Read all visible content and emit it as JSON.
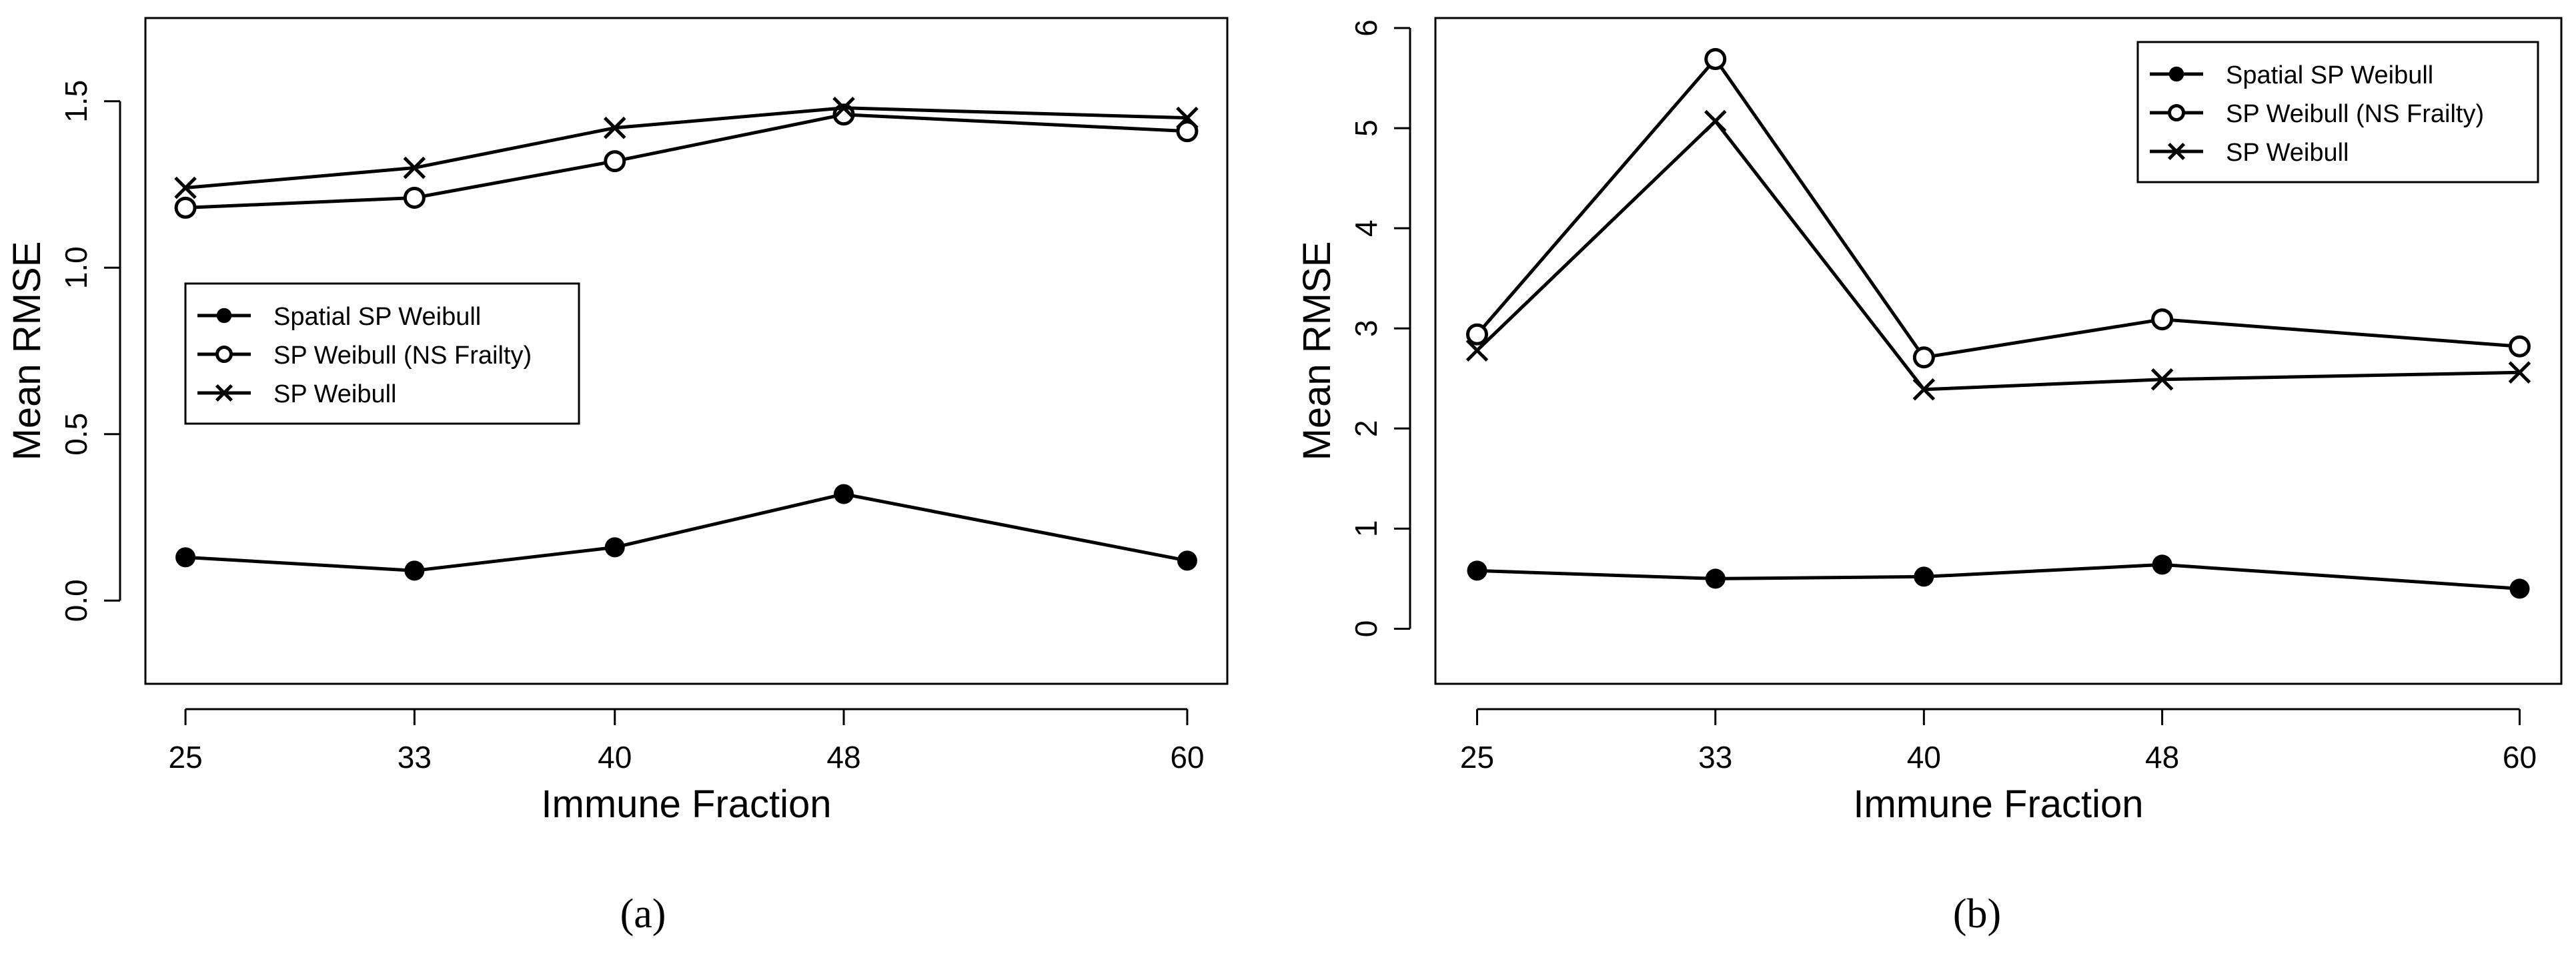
{
  "figure": {
    "caption_a": "(a)",
    "caption_b": "(b)"
  },
  "chart_data": [
    {
      "type": "line",
      "panel_label": "(a)",
      "xlabel": "Immune Fraction",
      "ylabel": "Mean RMSE",
      "categories": [
        "25",
        "33",
        "40",
        "48",
        "60"
      ],
      "x": [
        25,
        33,
        40,
        48,
        60
      ],
      "xlim": [
        23.6,
        61.4
      ],
      "ylim": [
        -0.25,
        1.75
      ],
      "yticks": [
        0.0,
        0.5,
        1.0,
        1.5
      ],
      "ytick_labels": [
        "0.0",
        "0.5",
        "1.0",
        "1.5"
      ],
      "legend_position": "center-left",
      "series": [
        {
          "name": "Spatial SP Weibull",
          "marker": "filled-circle",
          "values": [
            0.13,
            0.09,
            0.16,
            0.32,
            0.12
          ]
        },
        {
          "name": "SP Weibull (NS Frailty)",
          "marker": "open-circle",
          "values": [
            1.18,
            1.21,
            1.32,
            1.46,
            1.41
          ]
        },
        {
          "name": "SP Weibull",
          "marker": "cross",
          "values": [
            1.24,
            1.3,
            1.42,
            1.48,
            1.45
          ]
        }
      ]
    },
    {
      "type": "line",
      "panel_label": "(b)",
      "xlabel": "Immune Fraction",
      "ylabel": "Mean RMSE",
      "categories": [
        "25",
        "33",
        "40",
        "48",
        "60"
      ],
      "x": [
        25,
        33,
        40,
        48,
        60
      ],
      "xlim": [
        23.6,
        61.4
      ],
      "ylim": [
        -0.55,
        6.1
      ],
      "yticks": [
        0,
        1,
        2,
        3,
        4,
        5,
        6
      ],
      "ytick_labels": [
        "0",
        "1",
        "2",
        "3",
        "4",
        "5",
        "6"
      ],
      "legend_position": "top-right",
      "series": [
        {
          "name": "Spatial SP Weibull",
          "marker": "filled-circle",
          "values": [
            0.58,
            0.5,
            0.52,
            0.64,
            0.4
          ]
        },
        {
          "name": "SP Weibull (NS Frailty)",
          "marker": "open-circle",
          "values": [
            2.94,
            5.69,
            2.71,
            3.09,
            2.82
          ]
        },
        {
          "name": "SP Weibull",
          "marker": "cross",
          "values": [
            2.78,
            5.07,
            2.39,
            2.49,
            2.56
          ]
        }
      ]
    }
  ]
}
